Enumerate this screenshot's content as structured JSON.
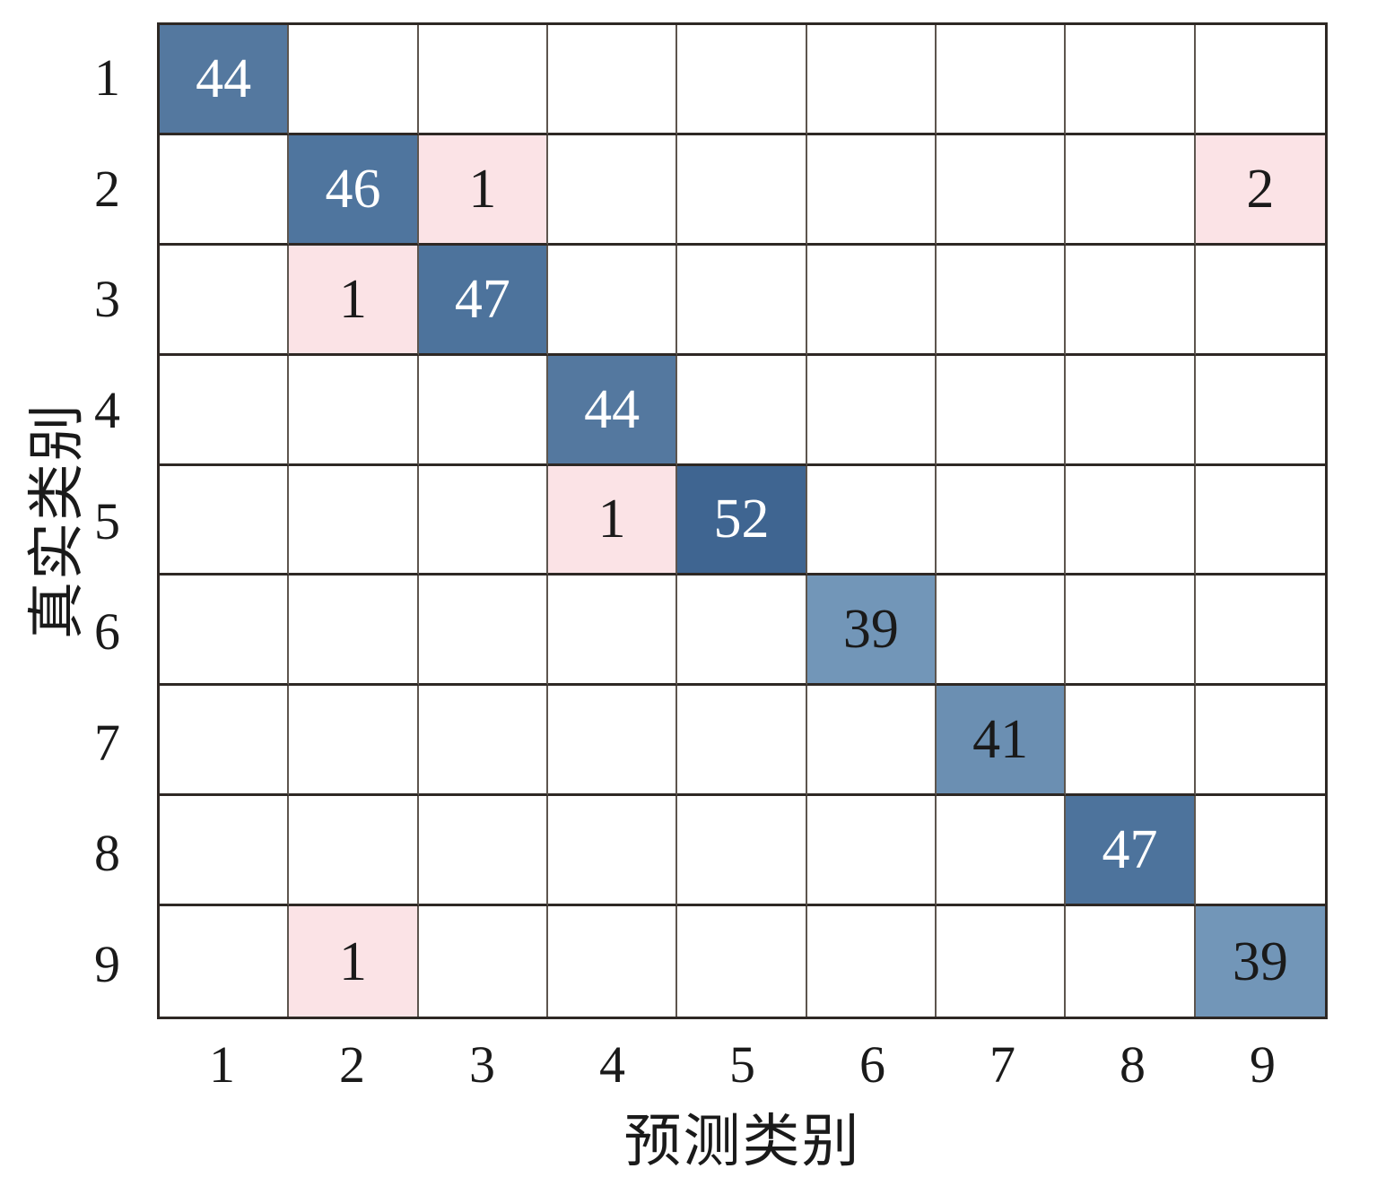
{
  "chart_data": {
    "type": "heatmap",
    "title": "",
    "xlabel": "预测类别",
    "ylabel": "真实类别",
    "x_ticks": [
      "1",
      "2",
      "3",
      "4",
      "5",
      "6",
      "7",
      "8",
      "9"
    ],
    "y_ticks": [
      "1",
      "2",
      "3",
      "4",
      "5",
      "6",
      "7",
      "8",
      "9"
    ],
    "matrix": [
      [
        44,
        0,
        0,
        0,
        0,
        0,
        0,
        0,
        0
      ],
      [
        0,
        46,
        1,
        0,
        0,
        0,
        0,
        0,
        2
      ],
      [
        0,
        1,
        47,
        0,
        0,
        0,
        0,
        0,
        0
      ],
      [
        0,
        0,
        0,
        44,
        0,
        0,
        0,
        0,
        0
      ],
      [
        0,
        0,
        0,
        1,
        52,
        0,
        0,
        0,
        0
      ],
      [
        0,
        0,
        0,
        0,
        0,
        39,
        0,
        0,
        0
      ],
      [
        0,
        0,
        0,
        0,
        0,
        0,
        41,
        0,
        0
      ],
      [
        0,
        0,
        0,
        0,
        0,
        0,
        0,
        47,
        0
      ],
      [
        0,
        1,
        0,
        0,
        0,
        0,
        0,
        0,
        39
      ]
    ],
    "empty_value": 0,
    "empty_bg": "#ffffff",
    "value_colors": {
      "1": {
        "bg": "#fbe3e6",
        "fg": "#1a1a1a"
      },
      "2": {
        "bg": "#fbe3e6",
        "fg": "#1a1a1a"
      },
      "39": {
        "bg": "#7296b8",
        "fg": "#1a1a1a"
      },
      "41": {
        "bg": "#6b8fb2",
        "fg": "#1a1a1a"
      },
      "44": {
        "bg": "#54789f",
        "fg": "#ffffff"
      },
      "46": {
        "bg": "#4f759e",
        "fg": "#ffffff"
      },
      "47": {
        "bg": "#4d739c",
        "fg": "#ffffff"
      },
      "52": {
        "bg": "#3f6591",
        "fg": "#ffffff"
      },
      "grid_line_h": "#2e2824",
      "grid_line_v": "#5d554e",
      "border": "#2e2824"
    },
    "legend": "none",
    "grid": true
  }
}
